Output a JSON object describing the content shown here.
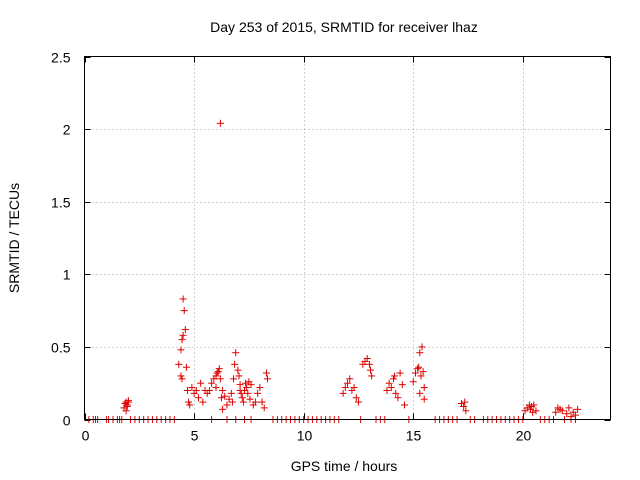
{
  "chart_data": {
    "type": "scatter",
    "title": "Day 253 of 2015, SRMTID for receiver lhaz",
    "xlabel": "GPS time / hours",
    "ylabel": "SRMTID / TECUs",
    "xlim": [
      0,
      24
    ],
    "ylim": [
      0,
      2.5
    ],
    "xticks": [
      0,
      5,
      10,
      15,
      20
    ],
    "xtick_labels": [
      "0",
      "5",
      "10",
      "15",
      "20"
    ],
    "yticks": [
      0,
      0.5,
      1,
      1.5,
      2,
      2.5
    ],
    "ytick_labels": [
      "0",
      "0.5",
      "1",
      "1.5",
      "2",
      "2.5"
    ],
    "grid": true,
    "marker": "+",
    "color": "#e00000",
    "series": [
      {
        "name": "SRMTID",
        "x": [
          1.8,
          1.85,
          1.9,
          1.95,
          2.0,
          1.9,
          1.95,
          2.0,
          4.3,
          4.4,
          4.45,
          4.5,
          4.5,
          4.55,
          4.45,
          4.6,
          4.4,
          4.65,
          4.7,
          4.75,
          4.8,
          4.9,
          5.0,
          5.1,
          5.2,
          5.3,
          5.4,
          5.5,
          5.6,
          5.7,
          5.8,
          5.9,
          6.0,
          6.05,
          6.1,
          6.15,
          6.2,
          6.25,
          6.0,
          6.3,
          6.4,
          6.5,
          6.6,
          6.7,
          6.75,
          6.8,
          6.85,
          6.9,
          7.0,
          7.05,
          7.1,
          7.1,
          7.15,
          7.2,
          7.25,
          7.3,
          7.35,
          7.4,
          7.45,
          7.5,
          7.55,
          7.6,
          7.7,
          7.8,
          7.9,
          8.0,
          8.1,
          8.2,
          8.3,
          8.35,
          6.2,
          6.3,
          11.8,
          11.9,
          12.0,
          12.1,
          12.2,
          12.3,
          12.4,
          12.5,
          12.7,
          12.8,
          12.9,
          13.0,
          13.05,
          13.1,
          13.8,
          13.9,
          14.0,
          14.1,
          14.15,
          14.2,
          14.3,
          14.4,
          14.5,
          14.6,
          15.0,
          15.1,
          15.2,
          15.25,
          15.3,
          15.35,
          15.4,
          15.45,
          15.5,
          15.3,
          15.5,
          17.2,
          17.3,
          17.35,
          17.4,
          20.1,
          20.2,
          20.3,
          20.35,
          20.4,
          20.45,
          20.5,
          20.6,
          21.5,
          21.6,
          21.7,
          21.8,
          22.0,
          22.1,
          22.2,
          22.3,
          22.4,
          22.5
        ],
        "y": [
          0.08,
          0.11,
          0.12,
          0.1,
          0.13,
          0.06,
          0.09,
          0.12,
          0.38,
          0.3,
          0.28,
          0.58,
          0.83,
          0.75,
          0.55,
          0.62,
          0.48,
          0.36,
          0.2,
          0.12,
          0.1,
          0.22,
          0.18,
          0.2,
          0.15,
          0.25,
          0.12,
          0.2,
          0.18,
          0.2,
          0.25,
          0.28,
          0.3,
          0.32,
          0.33,
          0.35,
          0.28,
          0.15,
          0.22,
          0.2,
          0.16,
          0.1,
          0.14,
          0.18,
          0.12,
          0.28,
          0.38,
          0.46,
          0.34,
          0.3,
          0.24,
          0.2,
          0.18,
          0.15,
          0.12,
          0.2,
          0.25,
          0.22,
          0.18,
          0.26,
          0.14,
          0.24,
          0.1,
          0.12,
          0.18,
          0.22,
          0.12,
          0.08,
          0.32,
          0.28,
          2.04,
          0.07,
          0.18,
          0.22,
          0.25,
          0.28,
          0.2,
          0.22,
          0.15,
          0.12,
          0.38,
          0.4,
          0.42,
          0.38,
          0.34,
          0.3,
          0.2,
          0.25,
          0.22,
          0.28,
          0.3,
          0.18,
          0.15,
          0.32,
          0.24,
          0.1,
          0.26,
          0.32,
          0.35,
          0.36,
          0.46,
          0.3,
          0.5,
          0.33,
          0.22,
          0.18,
          0.14,
          0.11,
          0.09,
          0.12,
          0.06,
          0.06,
          0.08,
          0.1,
          0.07,
          0.09,
          0.05,
          0.1,
          0.06,
          0.05,
          0.08,
          0.07,
          0.06,
          0.04,
          0.08,
          0.02,
          0.05,
          0.03,
          0.07
        ],
        "zeros_x": [
          0.2,
          0.4,
          0.5,
          0.6,
          1.0,
          1.1,
          1.3,
          1.5,
          1.6,
          1.7,
          2.1,
          2.3,
          2.5,
          2.7,
          2.9,
          3.1,
          3.3,
          3.5,
          3.7,
          3.9,
          4.1,
          5.8,
          6.5,
          6.9,
          7.3,
          7.6,
          8.6,
          8.8,
          9.0,
          9.2,
          9.4,
          9.6,
          9.8,
          10.0,
          10.2,
          10.4,
          10.6,
          10.8,
          11.0,
          11.2,
          11.4,
          11.6,
          12.6,
          13.3,
          13.5,
          13.7,
          14.8,
          16.0,
          16.2,
          16.4,
          16.6,
          16.8,
          17.0,
          17.6,
          17.8,
          18.2,
          18.4,
          18.6,
          18.8,
          19.0,
          19.2,
          19.4,
          19.6,
          19.8,
          20.0,
          20.8,
          21.0,
          21.2,
          21.4,
          21.9,
          22.2,
          22.4
        ]
      }
    ]
  }
}
